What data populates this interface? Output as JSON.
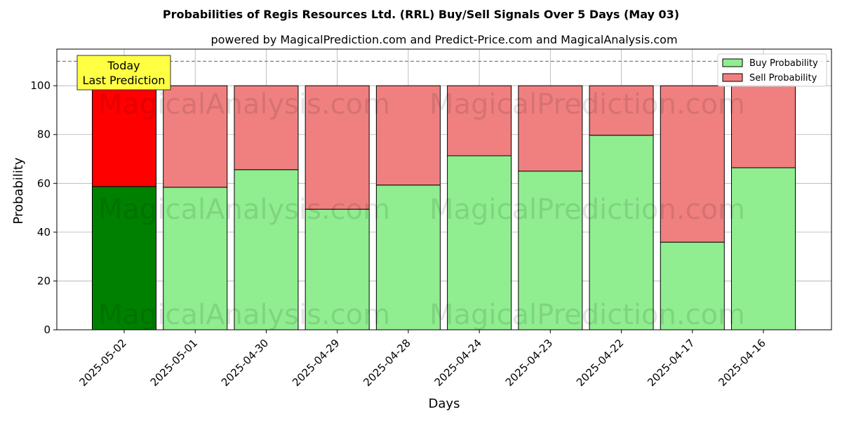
{
  "chart_data": {
    "type": "bar",
    "stacked": true,
    "title": "Probabilities of Regis Resources Ltd. (RRL) Buy/Sell Signals Over 5 Days (May 03)",
    "subtitle": "powered by MagicalPrediction.com and Predict-Price.com and MagicalAnalysis.com",
    "xlabel": "Days",
    "ylabel": "Probability",
    "ylim": [
      0,
      115
    ],
    "yticks": [
      0,
      20,
      40,
      60,
      80,
      100
    ],
    "grid": true,
    "legend_position": "top-right",
    "categories": [
      "2025-05-02",
      "2025-05-01",
      "2025-04-30",
      "2025-04-29",
      "2025-04-28",
      "2025-04-24",
      "2025-04-23",
      "2025-04-22",
      "2025-04-17",
      "2025-04-16"
    ],
    "series": [
      {
        "name": "Buy Probability",
        "values": [
          58.7,
          58.4,
          65.6,
          49.4,
          59.3,
          71.3,
          65.0,
          79.7,
          35.9,
          66.4
        ],
        "color": "#90ee90",
        "highlight_color": "#008000"
      },
      {
        "name": "Sell Probability",
        "values": [
          41.3,
          41.6,
          34.4,
          50.6,
          40.7,
          28.7,
          35.0,
          20.3,
          64.1,
          33.6
        ],
        "color": "#f08080",
        "highlight_color": "#ff0000"
      }
    ],
    "highlight_index": 0,
    "reference_line": 110,
    "annotation": {
      "line1": "Today",
      "line2": "Last Prediction",
      "color": "#ffff44"
    },
    "watermarks": [
      "MagicalAnalysis.com",
      "MagicalPrediction.com"
    ]
  }
}
